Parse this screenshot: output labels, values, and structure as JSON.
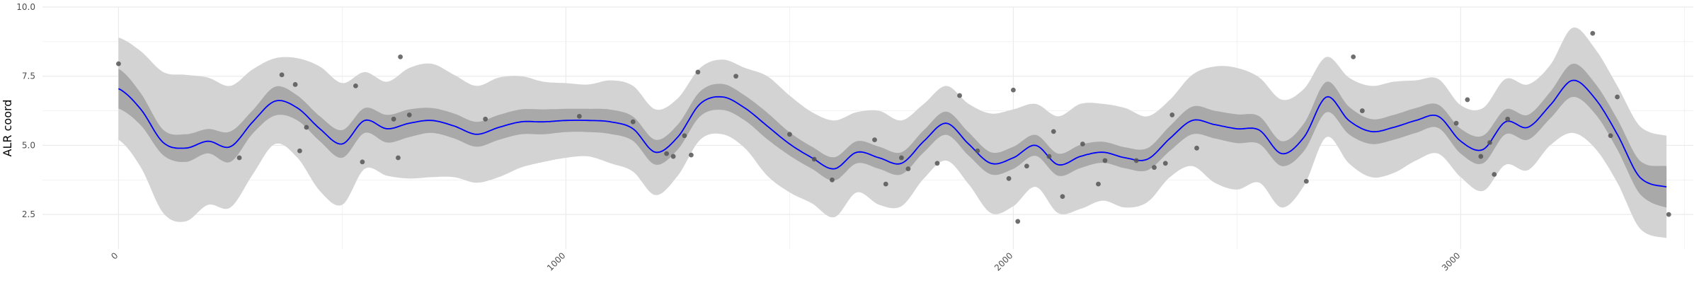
{
  "chart_data": {
    "type": "line",
    "title": "",
    "xlabel": "",
    "ylabel": "ALR coord",
    "xlim": [
      -170,
      3520
    ],
    "ylim": [
      1.25,
      10.0
    ],
    "x_ticks": [
      0,
      1000,
      2000,
      3000
    ],
    "x_tick_labels": [
      "0",
      "1000",
      "2000",
      "3000"
    ],
    "y_ticks": [
      2.5,
      5.0,
      7.5,
      10.0
    ],
    "y_tick_labels": [
      "2.5",
      "5.0",
      "7.5",
      "10.0"
    ],
    "grid": true,
    "colors": {
      "mean_line": "#0000ff",
      "inner_band": "#a9a9a9",
      "outer_band": "#d3d3d3",
      "points": "#555555",
      "grid": "#ebebeb"
    },
    "mean": {
      "x": [
        0,
        50,
        100,
        150,
        200,
        250,
        300,
        350,
        400,
        450,
        500,
        550,
        600,
        650,
        700,
        750,
        800,
        850,
        900,
        950,
        1000,
        1050,
        1100,
        1150,
        1200,
        1250,
        1300,
        1350,
        1400,
        1450,
        1500,
        1550,
        1600,
        1650,
        1700,
        1750,
        1800,
        1850,
        1900,
        1950,
        2000,
        2050,
        2100,
        2150,
        2200,
        2250,
        2300,
        2350,
        2400,
        2450,
        2500,
        2550,
        2600,
        2650,
        2700,
        2750,
        2800,
        2850,
        2900,
        2950,
        3000,
        3050,
        3100,
        3150,
        3200,
        3250,
        3300,
        3350,
        3400,
        3460
      ],
      "y": [
        7.05,
        6.3,
        5.1,
        4.9,
        5.15,
        4.95,
        5.85,
        6.6,
        6.35,
        5.6,
        5.05,
        5.9,
        5.6,
        5.8,
        5.9,
        5.7,
        5.4,
        5.65,
        5.85,
        5.85,
        5.9,
        5.9,
        5.85,
        5.6,
        4.75,
        5.3,
        6.5,
        6.75,
        6.35,
        5.7,
        5.05,
        4.55,
        4.15,
        4.75,
        4.55,
        4.35,
        5.15,
        5.8,
        5.05,
        4.35,
        4.55,
        5.0,
        4.3,
        4.6,
        4.75,
        4.55,
        4.5,
        5.25,
        5.9,
        5.75,
        5.6,
        5.55,
        4.7,
        5.3,
        6.75,
        5.9,
        5.5,
        5.65,
        5.9,
        6.05,
        5.15,
        4.85,
        5.85,
        5.65,
        6.45,
        7.35,
        6.7,
        5.4,
        3.85,
        3.5
      ],
      "inner_halfwidth": [
        0.72,
        0.58,
        0.46,
        0.5,
        0.44,
        0.55,
        0.42,
        0.52,
        0.45,
        0.45,
        0.5,
        0.45,
        0.5,
        0.5,
        0.45,
        0.45,
        0.45,
        0.45,
        0.45,
        0.45,
        0.42,
        0.42,
        0.44,
        0.44,
        0.45,
        0.45,
        0.45,
        0.47,
        0.45,
        0.48,
        0.42,
        0.4,
        0.42,
        0.4,
        0.4,
        0.4,
        0.4,
        0.42,
        0.42,
        0.4,
        0.4,
        0.38,
        0.4,
        0.42,
        0.38,
        0.38,
        0.4,
        0.45,
        0.5,
        0.5,
        0.52,
        0.5,
        0.45,
        0.5,
        0.55,
        0.5,
        0.45,
        0.45,
        0.45,
        0.42,
        0.45,
        0.5,
        0.45,
        0.45,
        0.48,
        0.6,
        0.55,
        0.55,
        0.6,
        0.75
      ],
      "outer_halfwidth": [
        1.85,
        2.1,
        2.55,
        2.65,
        2.3,
        2.2,
        1.9,
        1.55,
        1.8,
        2.25,
        2.2,
        1.75,
        1.7,
        2.0,
        2.05,
        1.85,
        1.75,
        1.8,
        1.65,
        1.45,
        1.35,
        1.3,
        1.5,
        1.55,
        1.55,
        1.4,
        1.3,
        1.35,
        1.45,
        1.8,
        1.75,
        1.65,
        1.75,
        1.45,
        1.7,
        1.55,
        1.35,
        1.35,
        1.45,
        1.8,
        1.75,
        1.5,
        1.75,
        1.9,
        1.75,
        1.8,
        1.55,
        1.4,
        1.65,
        2.1,
        2.2,
        1.9,
        1.95,
        1.75,
        1.45,
        1.55,
        1.65,
        1.65,
        1.45,
        1.35,
        1.3,
        1.5,
        1.55,
        1.55,
        1.45,
        1.9,
        1.8,
        1.75,
        1.85,
        1.85
      ]
    },
    "points": {
      "x": [
        0,
        270,
        365,
        395,
        405,
        420,
        530,
        545,
        615,
        625,
        630,
        650,
        820,
        1030,
        1150,
        1225,
        1240,
        1265,
        1280,
        1295,
        1380,
        1500,
        1555,
        1595,
        1690,
        1715,
        1750,
        1765,
        1830,
        1880,
        1920,
        1990,
        2000,
        2010,
        2030,
        2080,
        2090,
        2110,
        2155,
        2190,
        2205,
        2275,
        2315,
        2340,
        2355,
        2410,
        2655,
        2760,
        2780,
        2990,
        3015,
        3045,
        3065,
        3075,
        3105,
        3295,
        3335,
        3350,
        3465
      ],
      "y": [
        7.95,
        4.55,
        7.55,
        7.2,
        4.8,
        5.65,
        7.15,
        4.4,
        5.95,
        4.55,
        8.2,
        6.1,
        5.95,
        6.05,
        5.85,
        4.7,
        4.6,
        5.35,
        4.65,
        7.65,
        7.5,
        5.4,
        4.5,
        3.75,
        5.2,
        3.6,
        4.55,
        4.15,
        4.35,
        6.8,
        4.8,
        3.8,
        7.0,
        2.25,
        4.25,
        4.6,
        5.5,
        3.15,
        5.05,
        3.6,
        4.45,
        4.45,
        4.2,
        4.35,
        6.1,
        4.9,
        3.7,
        8.2,
        6.25,
        5.8,
        6.65,
        4.6,
        5.1,
        3.95,
        5.95,
        9.05,
        5.35,
        6.75,
        2.5
      ]
    }
  }
}
